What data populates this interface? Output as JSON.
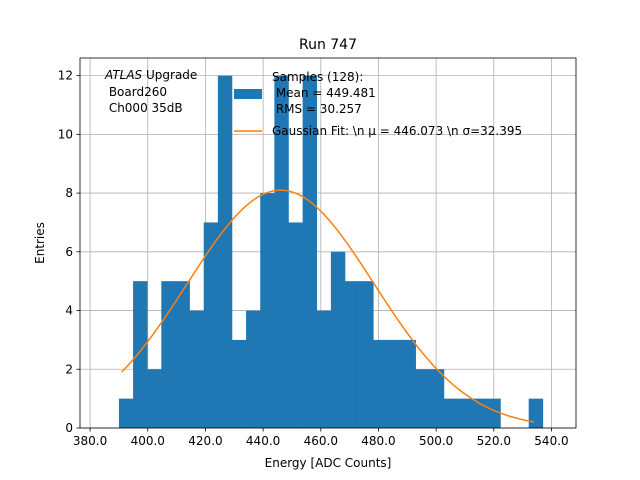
{
  "chart_data": {
    "type": "bar",
    "title": "Run 747",
    "xlabel": "Energy [ADC Counts]",
    "ylabel": "Entries",
    "xlim": [
      376.5,
      548.5
    ],
    "ylim": [
      0,
      12.6
    ],
    "grid": true,
    "x_ticks": [
      "380.0",
      "400.0",
      "420.0",
      "440.0",
      "460.0",
      "480.0",
      "500.0",
      "520.0",
      "540.0"
    ],
    "y_ticks": [
      "0",
      "2",
      "4",
      "6",
      "8",
      "10",
      "12"
    ],
    "bin_width": 4.9,
    "bin_lefts": [
      390.0,
      394.9,
      399.8,
      404.7,
      409.6,
      414.5,
      419.4,
      424.3,
      429.2,
      434.1,
      439.0,
      443.9,
      448.8,
      453.7,
      458.6,
      463.5,
      468.4,
      473.3,
      478.2,
      483.1,
      488.0,
      492.9,
      497.8,
      502.7,
      507.6,
      512.5,
      517.4,
      522.3,
      527.2,
      532.1
    ],
    "counts": [
      1,
      5,
      2,
      5,
      5,
      4,
      7,
      12,
      3,
      4,
      8,
      12,
      7,
      12,
      4,
      6,
      5,
      5,
      3,
      3,
      3,
      2,
      2,
      1,
      1,
      1,
      1,
      0,
      0,
      1
    ],
    "series": [
      {
        "name": "Samples (128):\n Mean = 449.481\n RMS = 30.257",
        "color": "#1f77b4"
      },
      {
        "name": "Gaussian Fit: \\n μ = 446.073 \\n σ=32.395",
        "color": "#ff7f0e",
        "mu": 446.073,
        "sigma": 32.395,
        "amplitude": 8.1,
        "x_range": [
          391.0,
          534.0
        ]
      }
    ],
    "legend": {
      "location": "upper center",
      "hist_lines": [
        "Samples (128):",
        " Mean = 449.481",
        " RMS = 30.257"
      ],
      "fit_line": "Gaussian Fit: \\n μ = 446.073 \\n σ=32.395"
    },
    "annotation": {
      "italic": "ATLAS",
      "rest": " Upgrade",
      "line2": " Board260",
      "line3": " Ch000 35dB"
    }
  }
}
